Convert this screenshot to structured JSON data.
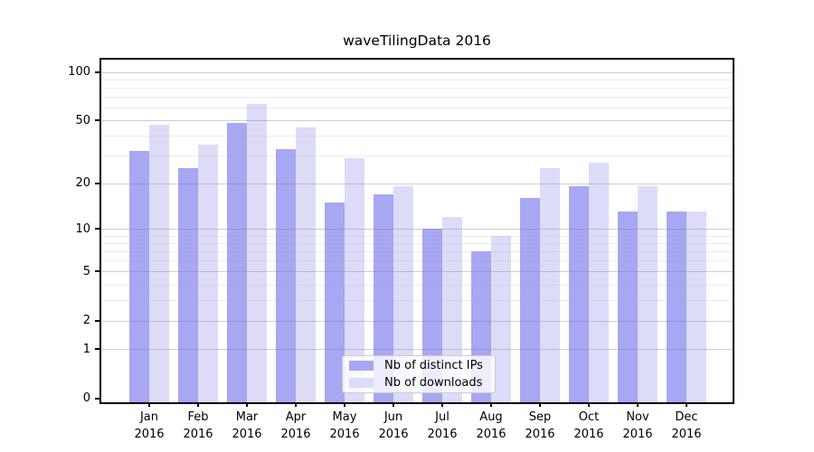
{
  "chart_data": {
    "type": "bar",
    "title": "waveTilingData 2016",
    "categories": [
      "Jan 2016",
      "Feb 2016",
      "Mar 2016",
      "Apr 2016",
      "May 2016",
      "Jun 2016",
      "Jul 2016",
      "Aug 2016",
      "Sep 2016",
      "Oct 2016",
      "Nov 2016",
      "Dec 2016"
    ],
    "series": [
      {
        "name": "Nb of distinct IPs",
        "color": "#a7a7f3",
        "values": [
          32,
          25,
          48,
          33,
          15,
          17,
          10,
          7,
          16,
          19,
          13,
          13
        ]
      },
      {
        "name": "Nb of downloads",
        "color": "#dcdcf9",
        "values": [
          47,
          35,
          63,
          45,
          29,
          19,
          12,
          9,
          25,
          27,
          19,
          13
        ]
      }
    ],
    "xlabel": "",
    "ylabel": "",
    "yscale": "log10(1+y)",
    "ylim": [
      0,
      120
    ],
    "yticks": [
      0,
      1,
      2,
      5,
      10,
      20,
      50,
      100
    ],
    "yticks_minor": [
      3,
      4,
      6,
      7,
      8,
      9,
      30,
      40,
      60,
      70,
      80,
      90
    ],
    "grid": true,
    "gridlines_over_bars": true,
    "legend_position": "lower center",
    "colors": {
      "background": "#ffffff",
      "spine": "#000000",
      "grid_major": "#c9c9c9",
      "grid_minor": "#e9e9e9",
      "legend_border": "#cccccc"
    }
  }
}
